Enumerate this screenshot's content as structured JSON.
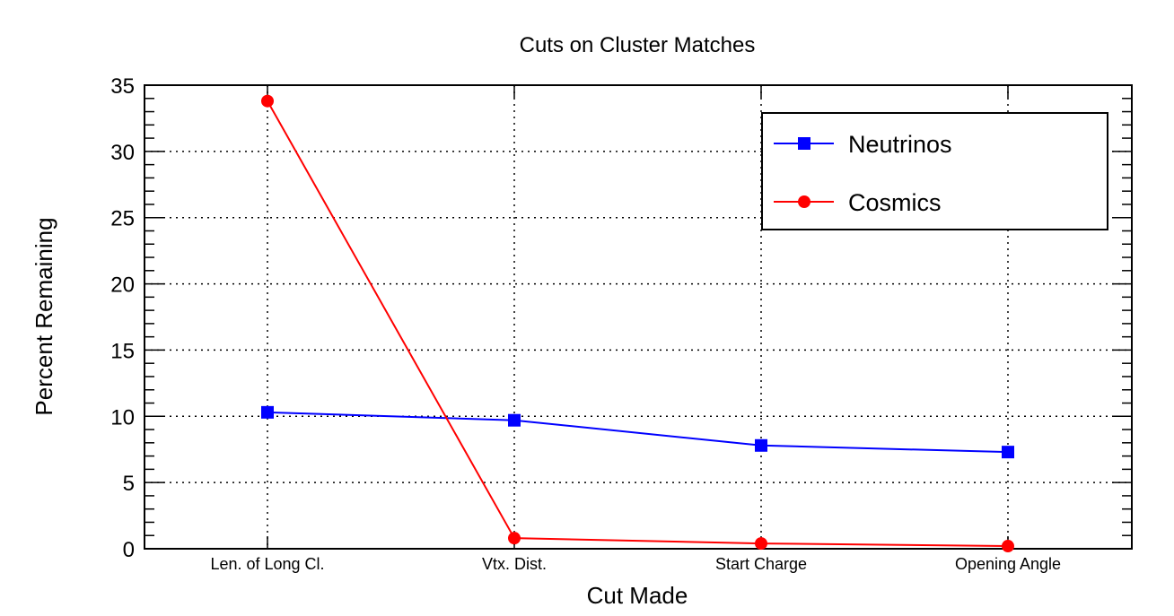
{
  "chart_data": {
    "type": "line",
    "title": "Cuts on Cluster Matches",
    "xlabel": "Cut Made",
    "ylabel": "Percent Remaining",
    "categories": [
      "Len. of Long Cl.",
      "Vtx. Dist.",
      "Start Charge",
      "Opening Angle"
    ],
    "ylim": [
      0,
      35
    ],
    "yticks": [
      0,
      5,
      10,
      15,
      20,
      25,
      30,
      35
    ],
    "grid": true,
    "legend_position": "top-right",
    "series": [
      {
        "name": "Neutrinos",
        "values": [
          10.3,
          9.7,
          7.8,
          7.3
        ],
        "color": "#0000ff",
        "marker": "square"
      },
      {
        "name": "Cosmics",
        "values": [
          33.8,
          0.8,
          0.4,
          0.2
        ],
        "color": "#ff0000",
        "marker": "circle"
      }
    ]
  }
}
